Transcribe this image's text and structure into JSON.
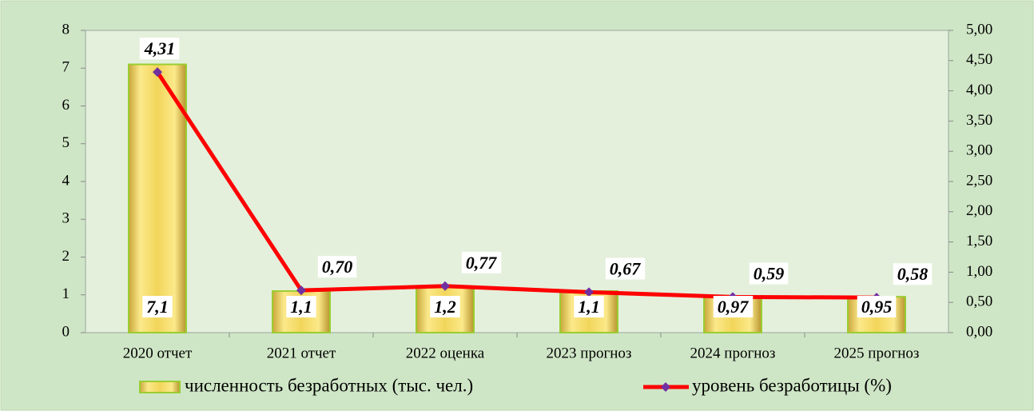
{
  "chart_data": {
    "type": "bar",
    "categories": [
      "2020 отчет",
      "2021 отчет",
      "2022 оценка",
      "2023 прогноз",
      "2024 прогноз",
      "2025 прогноз"
    ],
    "series": [
      {
        "name": "численность безработных (тыс. чел.)",
        "type": "bar",
        "color": "#f2d55a",
        "values": [
          7.1,
          1.1,
          1.2,
          1.1,
          0.97,
          0.95
        ],
        "value_labels": [
          "7,1",
          "1,1",
          "1,2",
          "1,1",
          "0,97",
          "0,95"
        ]
      },
      {
        "name": "уровень безработицы (%)",
        "type": "line",
        "axis": "y2",
        "color": "#ff0000",
        "marker_color": "#7030a0",
        "values": [
          4.31,
          0.7,
          0.77,
          0.67,
          0.59,
          0.58
        ],
        "value_labels": [
          "4,31",
          "0,70",
          "0,77",
          "0,67",
          "0,59",
          "0,58"
        ]
      }
    ],
    "ylim": [
      0,
      8
    ],
    "yticks": [
      0,
      1,
      2,
      3,
      4,
      5,
      6,
      7,
      8
    ],
    "y2lim": [
      0,
      5
    ],
    "y2ticks": [
      {
        "value": 0,
        "label": "0,00"
      },
      {
        "value": 0.5,
        "label": "0,50"
      },
      {
        "value": 1,
        "label": "1,00"
      },
      {
        "value": 1.5,
        "label": "1,50"
      },
      {
        "value": 2,
        "label": "2,00"
      },
      {
        "value": 2.5,
        "label": "2,50"
      },
      {
        "value": 3,
        "label": "3,00"
      },
      {
        "value": 3.5,
        "label": "3,50"
      },
      {
        "value": 4,
        "label": "4,00"
      },
      {
        "value": 4.5,
        "label": "4,50"
      },
      {
        "value": 5,
        "label": "5,00"
      }
    ],
    "legend": "bottom"
  }
}
